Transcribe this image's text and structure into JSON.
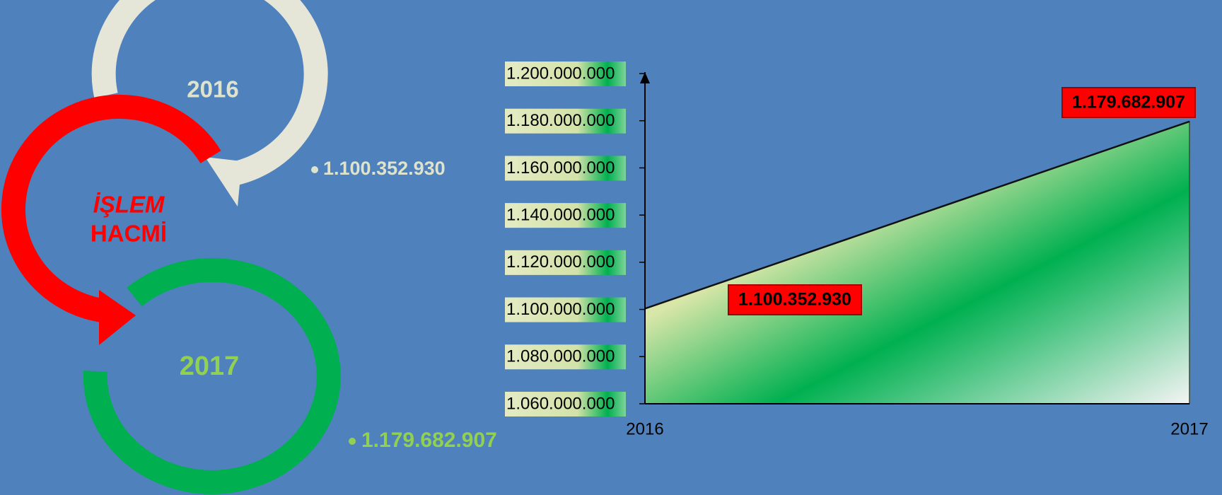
{
  "diagram": {
    "title_line1": "İŞLEM",
    "title_line2": "HACMİ",
    "items": [
      {
        "year": "2016",
        "value": "1.100.352.930"
      },
      {
        "year": "2017",
        "value": "1.179.682.907"
      }
    ]
  },
  "chart_data": {
    "type": "area",
    "categories": [
      "2016",
      "2017"
    ],
    "values": [
      1100352930,
      1179682907
    ],
    "value_labels": [
      "1.100.352.930",
      "1.179.682.907"
    ],
    "ylim": [
      1060000000,
      1200000000
    ],
    "yticks": [
      {
        "value": 1060000000,
        "label": "1.060.000.000"
      },
      {
        "value": 1080000000,
        "label": "1.080.000.000"
      },
      {
        "value": 1100000000,
        "label": "1.100.000.000"
      },
      {
        "value": 1120000000,
        "label": "1.120.000.000"
      },
      {
        "value": 1140000000,
        "label": "1.140.000.000"
      },
      {
        "value": 1160000000,
        "label": "1.160.000.000"
      },
      {
        "value": 1180000000,
        "label": "1.180.000.000"
      },
      {
        "value": 1200000000,
        "label": "1.200.000.000"
      }
    ],
    "color": "#00b050",
    "label_color": "#ff0000"
  }
}
